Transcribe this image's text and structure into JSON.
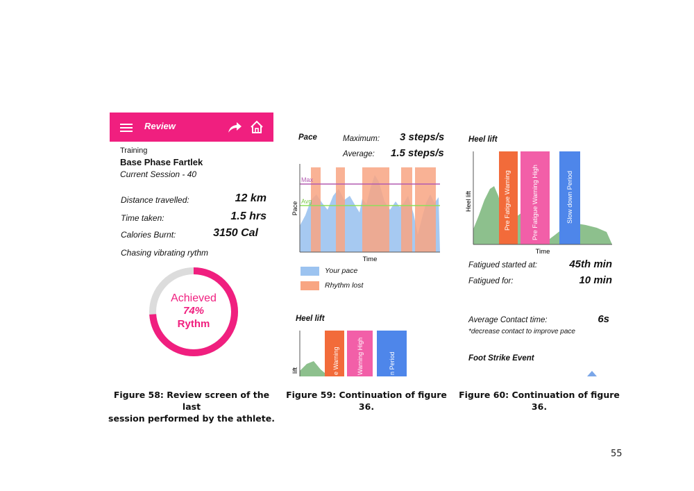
{
  "review": {
    "header_title": "Review",
    "training_label": "Training",
    "training_name": "Base Phase Fartlek",
    "session": "Current Session - 40",
    "stats": [
      {
        "label": "Distance travelled:",
        "value": "12 km"
      },
      {
        "label": "Time taken:",
        "value": "1.5 hrs"
      },
      {
        "label": "Calories Burnt:",
        "value": "3150 Cal"
      }
    ],
    "chasing_label": "Chasing vibrating rythm",
    "ring": {
      "line1": "Achieved",
      "line2": "74%",
      "line3": "Rythm",
      "fraction": 0.74,
      "color": "#f01f7f",
      "track": "#dcdcdc"
    }
  },
  "pace": {
    "title": "Pace",
    "maximum_label": "Maximum:",
    "maximum_value": "3 steps/s",
    "average_label": "Average:",
    "average_value": "1.5 steps/s",
    "max_line": "Max",
    "avg_line": "Avg",
    "ylabel": "Pace",
    "xlabel": "Time",
    "legend": [
      {
        "name": "Your pace",
        "color": "#9cc3f0"
      },
      {
        "name": "Rhythm lost",
        "color": "#f8a582"
      }
    ]
  },
  "heel_small": {
    "title": "Heel lift",
    "ylabel": "lift",
    "bars": [
      "e Warning",
      "Warning High",
      "n Period"
    ]
  },
  "heel": {
    "title": "Heel lift",
    "ylabel": "Heel lift",
    "xlabel": "Time",
    "bars": [
      {
        "label": "Pre Fatigue Warning",
        "color": "#f26b3a"
      },
      {
        "label": "Pre Fatigue Warning High",
        "color": "#f25fa8"
      },
      {
        "label": "Slow down Period",
        "color": "#4e86ea"
      }
    ],
    "fatigue_started_label": "Fatigued started at:",
    "fatigue_started_value": "45th min",
    "fatigued_for_label": "Fatigued for:",
    "fatigued_for_value": "10 min",
    "contact_label": "Average Contact time:",
    "contact_value": "6s",
    "contact_note": "*decrease contact to improve pace",
    "foot_strike_label": "Foot Strike Event"
  },
  "captions": {
    "fig58_line1": "Figure 58: Review screen of the last",
    "fig58_line2": "session performed by the athlete.",
    "fig59": "Figure 59: Continuation of figure 36.",
    "fig60": "Figure 60: Continuation of figure 36."
  },
  "page_number": "55"
}
